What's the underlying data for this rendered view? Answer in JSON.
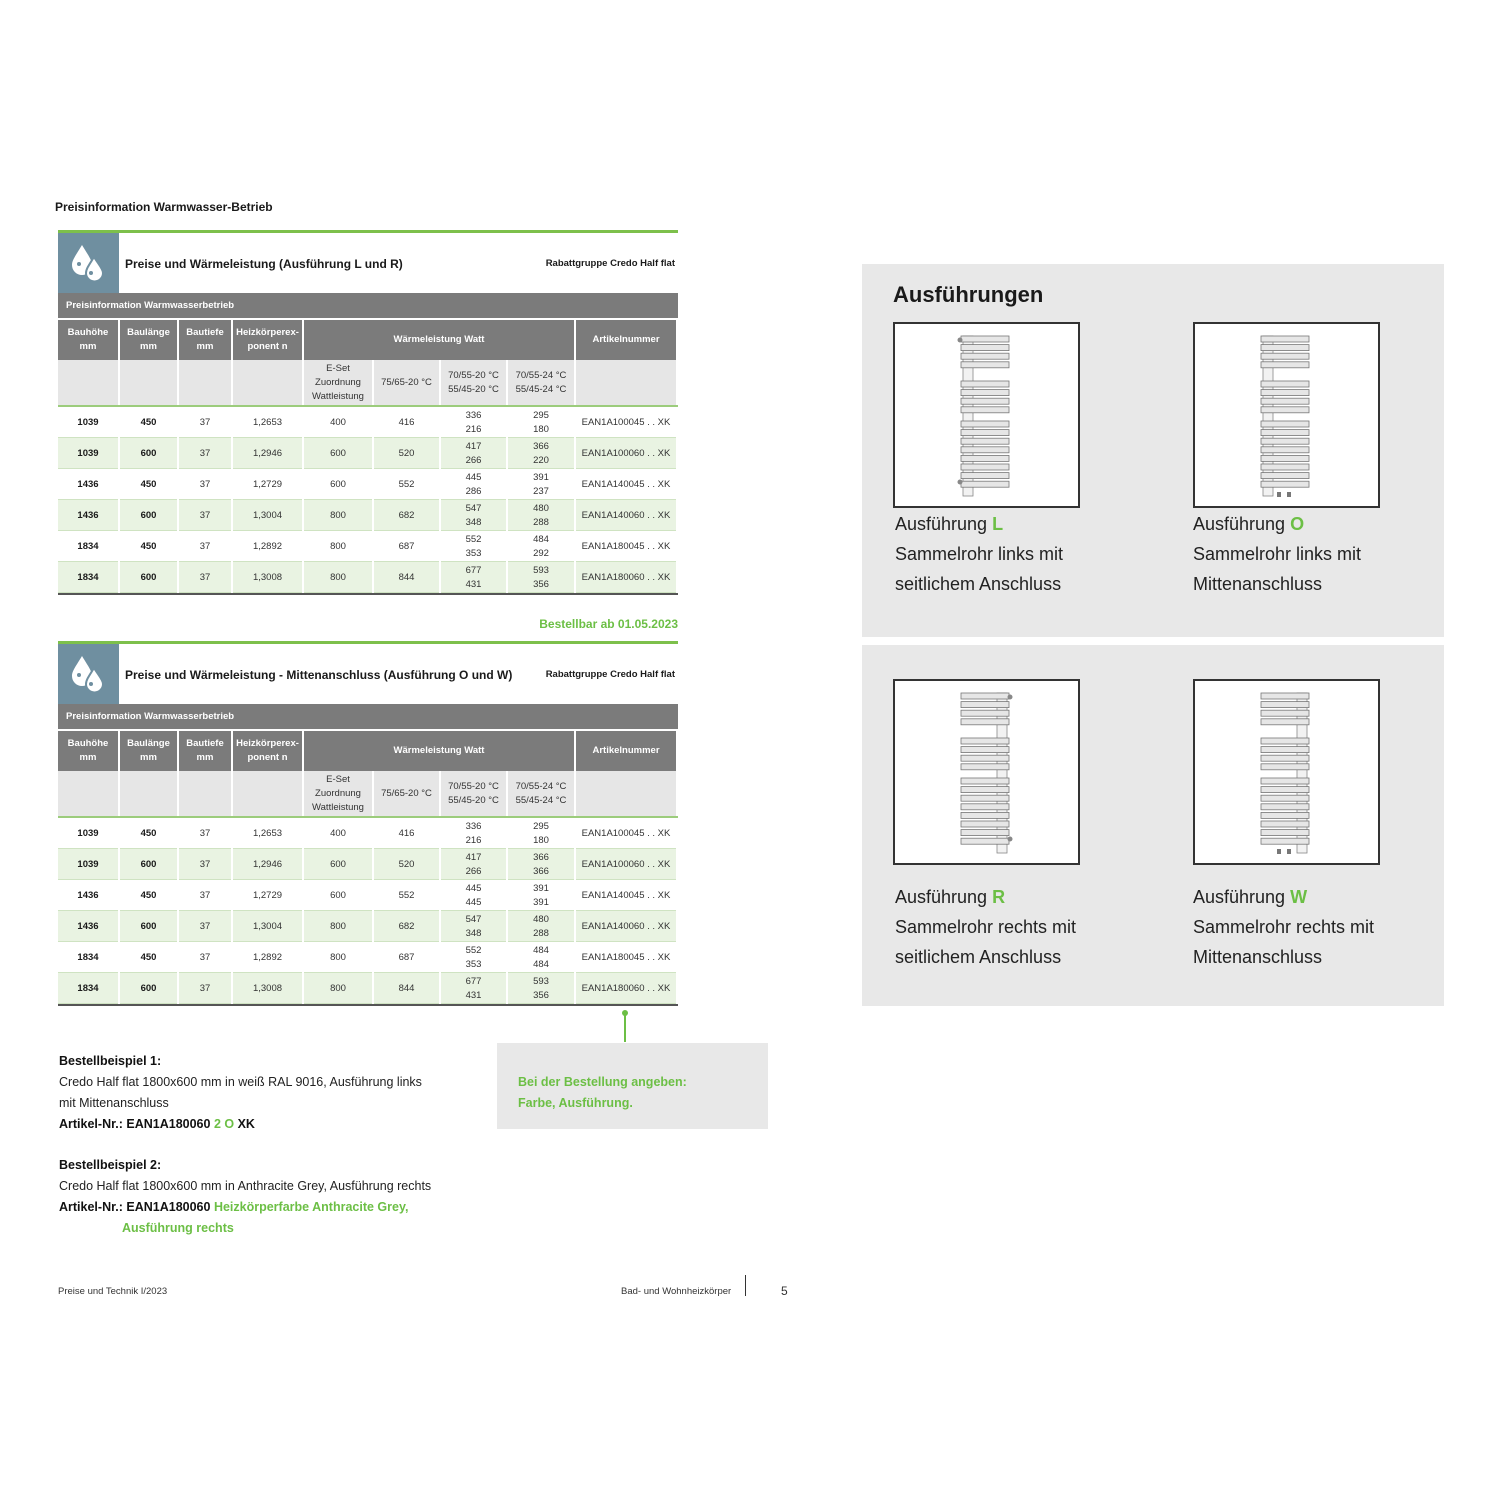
{
  "section_title": "Preisinformation Warmwasser-Betrieb",
  "colors": {
    "accent_green": "#6cbf45",
    "header_grey": "#7b7b7b",
    "icon_blue": "#6f8fa0"
  },
  "tables": [
    {
      "title": "Preise und Wärmeleistung (Ausführung L und R)",
      "rabattgruppe": "Rabattgruppe Credo Half flat",
      "band": "Preisinformation Warmwasserbetrieb",
      "icon": "water-drops-icon",
      "headers": [
        "Bauhöhe\nmm",
        "Baulänge\nmm",
        "Bautiefe\nmm",
        "Heizkörperex-\nponent n",
        "Wärmeleistung Watt",
        "Artikelnummer"
      ],
      "subheaders": [
        "E-Set\nZuordnung\nWattleistung",
        "75/65-20 °C",
        "70/55-20 °C\n55/45-20 °C",
        "70/55-24 °C\n55/45-24 °C"
      ],
      "rows": [
        [
          "1039",
          "450",
          "37",
          "1,2653",
          "400",
          "416",
          "336\n216",
          "295\n180",
          "EAN1A100045 . . XK"
        ],
        [
          "1039",
          "600",
          "37",
          "1,2946",
          "600",
          "520",
          "417\n266",
          "366\n220",
          "EAN1A100060 . . XK"
        ],
        [
          "1436",
          "450",
          "37",
          "1,2729",
          "600",
          "552",
          "445\n286",
          "391\n237",
          "EAN1A140045 . . XK"
        ],
        [
          "1436",
          "600",
          "37",
          "1,3004",
          "800",
          "682",
          "547\n348",
          "480\n288",
          "EAN1A140060 . . XK"
        ],
        [
          "1834",
          "450",
          "37",
          "1,2892",
          "800",
          "687",
          "552\n353",
          "484\n292",
          "EAN1A180045 . . XK"
        ],
        [
          "1834",
          "600",
          "37",
          "1,3008",
          "800",
          "844",
          "677\n431",
          "593\n356",
          "EAN1A180060 . . XK"
        ]
      ]
    },
    {
      "title": "Preise und Wärmeleistung - Mittenanschluss (Ausführung O und W)",
      "rabattgruppe": "Rabattgruppe Credo Half flat",
      "band": "Preisinformation Warmwasserbetrieb",
      "icon": "water-drops-icon",
      "headers": [
        "Bauhöhe\nmm",
        "Baulänge\nmm",
        "Bautiefe\nmm",
        "Heizkörperex-\nponent n",
        "Wärmeleistung Watt",
        "Artikelnummer"
      ],
      "subheaders": [
        "E-Set\nZuordnung\nWattleistung",
        "75/65-20 °C",
        "70/55-20 °C\n55/45-20 °C",
        "70/55-24 °C\n55/45-24 °C"
      ],
      "rows": [
        [
          "1039",
          "450",
          "37",
          "1,2653",
          "400",
          "416",
          "336\n216",
          "295\n180",
          "EAN1A100045 . . XK"
        ],
        [
          "1039",
          "600",
          "37",
          "1,2946",
          "600",
          "520",
          "417\n266",
          "366\n366",
          "EAN1A100060 . . XK"
        ],
        [
          "1436",
          "450",
          "37",
          "1,2729",
          "600",
          "552",
          "445\n445",
          "391\n391",
          "EAN1A140045 . . XK"
        ],
        [
          "1436",
          "600",
          "37",
          "1,3004",
          "800",
          "682",
          "547\n348",
          "480\n288",
          "EAN1A140060 . . XK"
        ],
        [
          "1834",
          "450",
          "37",
          "1,2892",
          "800",
          "687",
          "552\n353",
          "484\n484",
          "EAN1A180045 . . XK"
        ],
        [
          "1834",
          "600",
          "37",
          "1,3008",
          "800",
          "844",
          "677\n431",
          "593\n356",
          "EAN1A180060 . . XK"
        ]
      ]
    }
  ],
  "bestellbar": "Bestellbar ab 01.05.2023",
  "ausfuehrungen": {
    "title": "Ausführungen",
    "items": [
      {
        "prefix": "Ausführung ",
        "code": "L",
        "line1": "Sammelrohr links mit",
        "line2": "seitlichem Anschluss"
      },
      {
        "prefix": "Ausführung ",
        "code": "O",
        "line1": "Sammelrohr links mit",
        "line2": "Mittenanschluss"
      },
      {
        "prefix": "Ausführung ",
        "code": "R",
        "line1": "Sammelrohr rechts mit",
        "line2": "seitlichem Anschluss"
      },
      {
        "prefix": "Ausführung ",
        "code": "W",
        "line1": "Sammelrohr rechts mit",
        "line2": "Mittenanschluss"
      }
    ]
  },
  "note": {
    "line1": "Bei der Bestellung angeben:",
    "line2": "Farbe, Ausführung."
  },
  "examples": [
    {
      "title": "Bestellbeispiel 1:",
      "text1": "Credo Half flat 1800x600 mm in weiß RAL 9016, Ausführung links",
      "text2": "mit Mittenanschluss",
      "art_label": "Artikel-Nr.: EAN1A180060 ",
      "art_green": "2 O",
      "art_suffix": " XK"
    },
    {
      "title": "Bestellbeispiel 2:",
      "text1": "Credo Half flat 1800x600 mm in Anthracite Grey, Ausführung rechts",
      "art_label": "Artikel-Nr.: EAN1A180060 ",
      "art_green": "Heizkörperfarbe Anthracite Grey,",
      "art_green2": "Ausführung rechts"
    }
  ],
  "footer": {
    "left": "Preise und Technik I/2023",
    "right": "Bad- und Wohnheizkörper",
    "page": "5"
  }
}
